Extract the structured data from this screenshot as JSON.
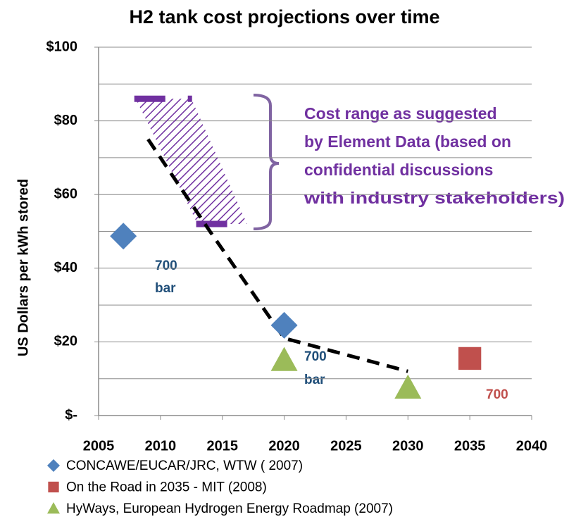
{
  "chart_data": {
    "type": "scatter",
    "title": "H2 tank cost projections over time",
    "y_label": "US Dollars per kWh stored",
    "xlim": [
      2005,
      2040
    ],
    "xticks": [
      2005,
      2010,
      2015,
      2020,
      2025,
      2030,
      2035,
      2040
    ],
    "ylim": [
      0,
      100
    ],
    "yticks": [
      {
        "value": 0,
        "label": "$-"
      },
      {
        "value": 20,
        "label": "$20"
      },
      {
        "value": 40,
        "label": "$40"
      },
      {
        "value": 60,
        "label": "$60"
      },
      {
        "value": 80,
        "label": "$80"
      },
      {
        "value": 100,
        "label": "$100"
      }
    ],
    "grid_step": 10,
    "grid": true,
    "series": [
      {
        "name": "CONCAWE/EUCAR/JRC, WTW ( 2007)",
        "color": "#4f81bd",
        "marker": "diamond",
        "x": [
          2007,
          2020
        ],
        "values": [
          48.7,
          24.5
        ]
      },
      {
        "name": "On the Road in 2035 - MIT (2008)",
        "color": "#c0504d",
        "marker": "square",
        "x": [
          2035
        ],
        "values": [
          15.5
        ]
      },
      {
        "name": "HyWays, European Hydrogen Energy Roadmap (2007)",
        "color": "#9bbb59",
        "marker": "triangle",
        "x": [
          2020,
          2030
        ],
        "values": [
          15,
          7.5
        ]
      }
    ],
    "trend": {
      "color": "#000000",
      "x": [
        2009,
        2014,
        2020,
        2030
      ],
      "values": [
        75,
        50,
        21,
        12
      ]
    },
    "range": {
      "color": "#7030a0",
      "top": {
        "x": [
          2008,
          2012.5
        ],
        "value": 86
      },
      "bottom": {
        "x": [
          2013,
          2017
        ],
        "value": 52
      },
      "annotation": [
        "Cost range as suggested",
        "by Element Data (based on",
        "confidential discussions",
        "with industry stakeholders)"
      ]
    },
    "annotations": [
      {
        "lines": [
          "700",
          "bar"
        ],
        "color": "#1f4e79"
      },
      {
        "lines": [
          "700",
          "bar"
        ],
        "color": "#1f4e79"
      },
      {
        "lines": [
          "700"
        ],
        "color": "#c0504d"
      }
    ]
  }
}
